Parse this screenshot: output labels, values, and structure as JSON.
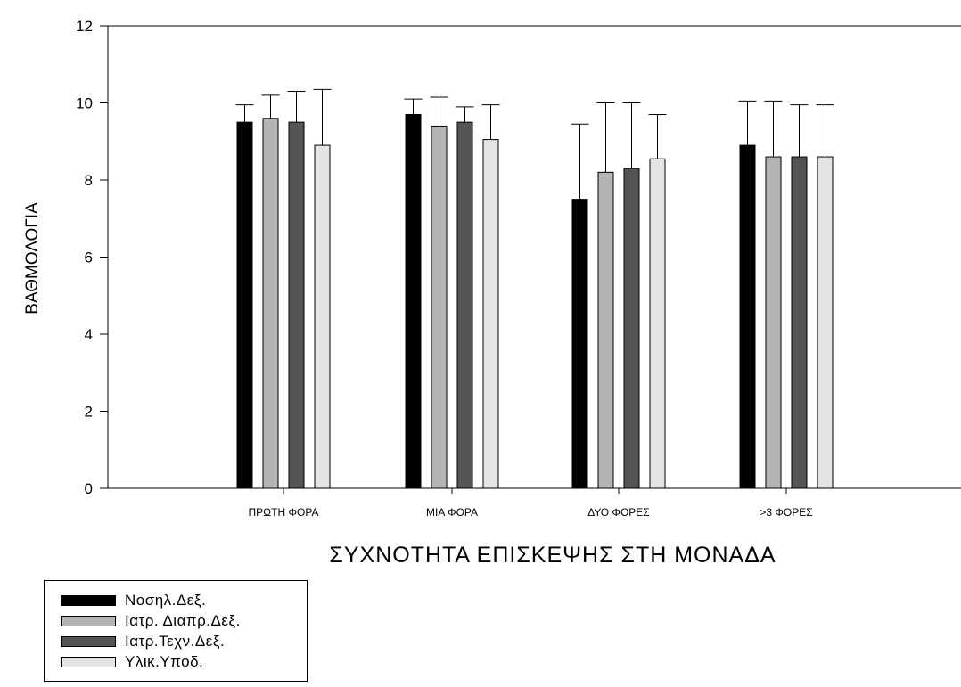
{
  "chart_data": {
    "type": "bar",
    "title": "",
    "xlabel": "ΣΥΧΝΟΤΗΤΑ ΕΠΙΣΚΕΨΗΣ ΣΤΗ ΜΟΝΑΔΑ",
    "ylabel": "ΒΑΘΜΟΛΟΓΙΑ",
    "ylim": [
      0,
      12
    ],
    "yticks": [
      "0",
      "2",
      "4",
      "6",
      "8",
      "10",
      "12"
    ],
    "categories": [
      "ΠΡΩΤΗ ΦΟΡΑ",
      "ΜΙΑ ΦΟΡΑ",
      "ΔΥΟ ΦΟΡΕΣ",
      ">3 ΦΟΡΕΣ"
    ],
    "series": [
      {
        "name": "Νοσηλ.Δεξ.",
        "color": "#000000",
        "values": [
          9.5,
          9.7,
          7.5,
          8.9
        ],
        "error": [
          0.45,
          0.4,
          1.95,
          1.15
        ]
      },
      {
        "name": "Ιατρ. Διαπρ.Δεξ.",
        "color": "#b4b4b4",
        "values": [
          9.6,
          9.4,
          8.2,
          8.6
        ],
        "error": [
          0.6,
          0.75,
          1.8,
          1.45
        ]
      },
      {
        "name": "Ιατρ.Τεχν.Δεξ.",
        "color": "#555555",
        "values": [
          9.5,
          9.5,
          8.3,
          8.6
        ],
        "error": [
          0.8,
          0.4,
          1.7,
          1.35
        ]
      },
      {
        "name": "Υλικ.Υποδ.",
        "color": "#e4e4e4",
        "values": [
          8.9,
          9.05,
          8.55,
          8.6
        ],
        "error": [
          1.45,
          0.9,
          1.15,
          1.35
        ]
      }
    ],
    "legend_position": "bottom-left",
    "grid": false
  }
}
